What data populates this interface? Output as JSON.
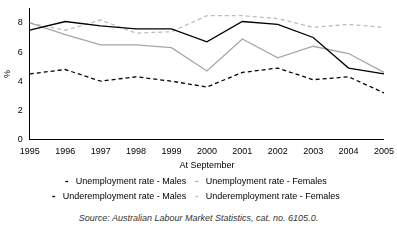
{
  "chart_data": {
    "type": "line",
    "x_label": "At September",
    "y_label": "%",
    "source": "Source: Australian Labour Market Statistics, cat. no. 6105.0.",
    "categories": [
      "1995",
      "1996",
      "1997",
      "1998",
      "1999",
      "2000",
      "2001",
      "2002",
      "2003",
      "2004",
      "2005"
    ],
    "series": [
      {
        "name": "Unemployment rate - Males",
        "color": "#000000",
        "line_style": "solid",
        "values": [
          7.5,
          8.1,
          7.8,
          7.6,
          7.6,
          6.7,
          8.1,
          7.9,
          7.0,
          4.9,
          4.5
        ]
      },
      {
        "name": "Unemployment rate - Females",
        "color": "#a6a6a6",
        "line_style": "solid",
        "values": [
          8.0,
          7.2,
          6.5,
          6.5,
          6.3,
          4.7,
          6.9,
          5.6,
          6.4,
          5.9,
          4.6
        ]
      },
      {
        "name": "Underemployment rate - Males",
        "color": "#000000",
        "line_style": "dashed",
        "values": [
          4.5,
          4.8,
          4.0,
          4.3,
          4.0,
          3.6,
          4.6,
          4.9,
          4.1,
          4.3,
          3.2
        ]
      },
      {
        "name": "Underemployment rate - Females",
        "color": "#bdbdbd",
        "line_style": "dashed",
        "values": [
          8.0,
          7.5,
          8.2,
          7.3,
          7.4,
          8.5,
          8.5,
          8.3,
          7.7,
          7.9,
          7.7
        ]
      }
    ],
    "ylim": [
      0,
      9
    ],
    "yticks": [
      0,
      2,
      4,
      6,
      8
    ],
    "grid": false,
    "legend": "bottom"
  }
}
